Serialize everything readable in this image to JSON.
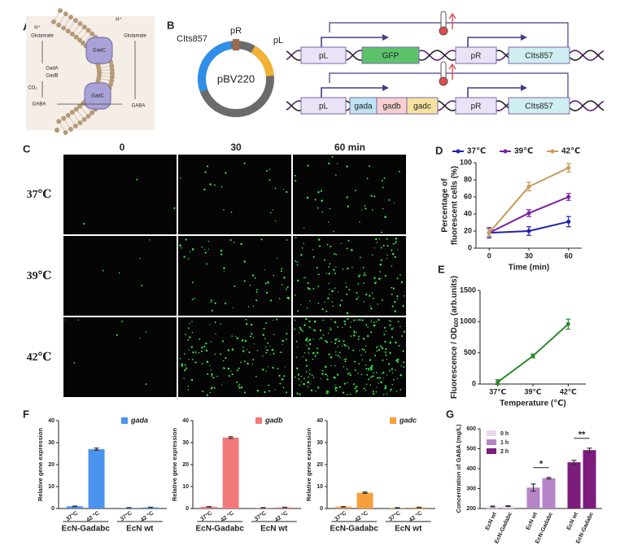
{
  "panels": {
    "A": {
      "letter": "A",
      "labels": [
        "H⁺",
        "H⁺",
        "Glutamate",
        "Glutamate",
        "GadC",
        "GadA",
        "GadB",
        "CO₂",
        "GABA",
        "GABA",
        "GadC"
      ]
    },
    "B": {
      "letter": "B",
      "plasmid": "pBV220",
      "parts": [
        "CIts857",
        "pR",
        "pL"
      ],
      "constructs": [
        [
          "pL",
          "GFP",
          "pR",
          "CIts857"
        ],
        [
          "pL",
          "gada",
          "gadb",
          "gadc",
          "pR",
          "CIts857"
        ]
      ]
    },
    "C": {
      "letter": "C",
      "columns": [
        "0",
        "30",
        "60 min"
      ],
      "rows": [
        "37℃",
        "39℃",
        "42℃"
      ]
    }
  },
  "chart_data": [
    {
      "type": "line",
      "panel_label": "D",
      "ylabel": [
        "Percentage of",
        "fluorescent cells (%)"
      ],
      "xlabel": "Time (min)",
      "x": [
        0,
        30,
        60
      ],
      "xlim": [
        -10,
        70
      ],
      "xticks": [
        0,
        30,
        60
      ],
      "ylim": [
        0,
        100
      ],
      "yticks": [
        0,
        20,
        40,
        60,
        80,
        100
      ],
      "series": [
        {
          "name": "37℃",
          "color": "#1f22a8",
          "values": [
            18,
            20,
            31
          ],
          "errors": [
            6,
            5,
            6
          ]
        },
        {
          "name": "39℃",
          "color": "#7a1fa0",
          "values": [
            18,
            41,
            60
          ],
          "errors": [
            4,
            4,
            4
          ]
        },
        {
          "name": "42℃",
          "color": "#c99a5a",
          "values": [
            18,
            72,
            94
          ],
          "errors": [
            4,
            5,
            5
          ]
        }
      ]
    },
    {
      "type": "line",
      "panel_label": "E",
      "ylabel": [
        "Fluorescence / OD",
        "600",
        " (arb.units)"
      ],
      "xlabel": "Temperature (℃)",
      "categories": [
        "37℃",
        "39℃",
        "42℃"
      ],
      "ylim": [
        0,
        1500
      ],
      "yticks": [
        0,
        500,
        1000,
        1500
      ],
      "series": [
        {
          "color": "#2e8b2e",
          "values": [
            30,
            450,
            960
          ],
          "errors": [
            40,
            30,
            80
          ]
        }
      ]
    },
    {
      "type": "bar",
      "panel_label": "F",
      "ylabel": "Relative gene expression",
      "categories": [
        "37°C",
        "42 °C",
        "37°C",
        "42 °C"
      ],
      "groups": [
        "EcN-Gadabc",
        "EcN wt"
      ],
      "ylim": [
        0,
        40
      ],
      "yticks": [
        0,
        10,
        20,
        30,
        40
      ],
      "series": [
        {
          "name": "gada",
          "color": "#4a93ef",
          "values": [
            1,
            27,
            0.3,
            0.5
          ],
          "errors": [
            0.1,
            0.5,
            0.1,
            0.1
          ]
        }
      ]
    },
    {
      "type": "bar",
      "ylabel": "Relative gene expression",
      "categories": [
        "37°C",
        "42 °C",
        "37°C",
        "42 °C"
      ],
      "groups": [
        "EcN-Gadabc",
        "EcN wt"
      ],
      "ylim": [
        0,
        40
      ],
      "yticks": [
        0,
        10,
        20,
        30,
        40
      ],
      "series": [
        {
          "name": "gadb",
          "color": "#f47a7a",
          "values": [
            0.8,
            32.3,
            0.3,
            0.5
          ],
          "errors": [
            0.1,
            0.4,
            0.1,
            0.1
          ]
        }
      ]
    },
    {
      "type": "bar",
      "ylabel": "Relative gene expression",
      "categories": [
        "37°C",
        "42 °C",
        "37°C",
        "42 °C"
      ],
      "groups": [
        "EcN-Gadabc",
        "EcN wt"
      ],
      "ylim": [
        0,
        40
      ],
      "yticks": [
        0,
        10,
        20,
        30,
        40
      ],
      "series": [
        {
          "name": "gadc",
          "color": "#f5a03d",
          "values": [
            0.8,
            7.2,
            0.3,
            0.5
          ],
          "errors": [
            0.1,
            0.3,
            0.1,
            0.1
          ]
        }
      ]
    },
    {
      "type": "bar",
      "panel_label": "G",
      "ylabel": "Concentration of GABA (mg/L)",
      "categories": [
        "EcN wt",
        "EcN-Gadabc",
        "EcN wt",
        "EcN-Gadabc",
        "EcN wt",
        "EcN-Gadabc"
      ],
      "ylim": [
        200,
        600
      ],
      "yticks": [
        200,
        300,
        400,
        500,
        600
      ],
      "series": [
        {
          "name": "0 h",
          "color": "#ead7f0",
          "values": [
            210,
            212,
            null,
            null,
            null,
            null
          ],
          "errors": [
            2,
            2,
            null,
            null,
            null,
            null
          ]
        },
        {
          "name": "1 h",
          "color": "#b585c8",
          "values": [
            null,
            null,
            305,
            352,
            null,
            null
          ],
          "errors": [
            null,
            null,
            18,
            4,
            null,
            null
          ]
        },
        {
          "name": "2 h",
          "color": "#7c1c7c",
          "values": [
            null,
            null,
            null,
            null,
            432,
            493
          ],
          "errors": [
            null,
            null,
            null,
            null,
            10,
            10
          ]
        }
      ],
      "annotations": [
        "*",
        "**"
      ]
    }
  ]
}
